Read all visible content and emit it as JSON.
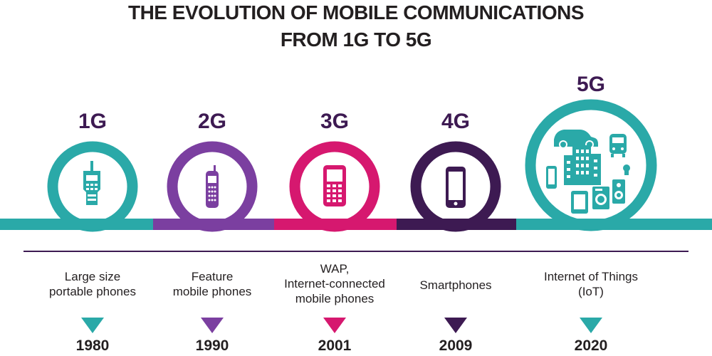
{
  "title": {
    "line1": "THE EVOLUTION OF MOBILE COMMUNICATIONS",
    "line2": "FROM 1G TO 5G"
  },
  "colors": {
    "teal": "#2aa9a8",
    "purple": "#7b3fa0",
    "magenta": "#d6186f",
    "dark_purple": "#3d1a52",
    "divider": "#3d1a52",
    "text": "#231f20"
  },
  "generations": [
    {
      "label": "1G",
      "description_lines": [
        "Large size",
        "portable phones"
      ],
      "year": "1980",
      "color": "#2aa9a8",
      "label_color": "#3d1a52",
      "icon": "brick-phone-icon"
    },
    {
      "label": "2G",
      "description_lines": [
        "Feature",
        "mobile phones"
      ],
      "year": "1990",
      "color": "#7b3fa0",
      "label_color": "#3d1a52",
      "icon": "feature-phone-icon"
    },
    {
      "label": "3G",
      "description_lines": [
        "WAP,",
        "Internet-connected",
        "mobile phones"
      ],
      "year": "2001",
      "color": "#d6186f",
      "label_color": "#3d1a52",
      "icon": "keypad-phone-icon"
    },
    {
      "label": "4G",
      "description_lines": [
        "Smartphones"
      ],
      "year": "2009",
      "color": "#3d1a52",
      "label_color": "#3d1a52",
      "icon": "smartphone-icon"
    },
    {
      "label": "5G",
      "description_lines": [
        "Internet of Things",
        "(IoT)"
      ],
      "year": "2020",
      "color": "#2aa9a8",
      "label_color": "#3d1a52",
      "icon": "iot-devices-icon"
    }
  ]
}
